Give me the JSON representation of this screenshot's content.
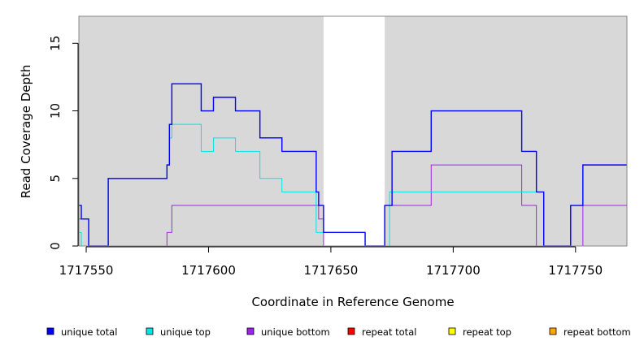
{
  "chart_data": {
    "type": "line",
    "step": true,
    "title": "",
    "xlabel": "Coordinate in Reference Genome",
    "ylabel": "Read Coverage Depth",
    "xlim": [
      1717547,
      1717771
    ],
    "ylim": [
      0,
      17
    ],
    "x_ticks": [
      1717550,
      1717600,
      1717650,
      1717700,
      1717750
    ],
    "x_tick_labels": [
      "1717550",
      "1717600",
      "1717650",
      "1717700",
      "1717750"
    ],
    "y_ticks": [
      0,
      5,
      10,
      15
    ],
    "y_tick_labels": [
      "0",
      "5",
      "10",
      "15"
    ],
    "background": {
      "shaded_color": "#d8d8d8",
      "shaded_ranges": [
        [
          1717547,
          1717647
        ],
        [
          1717672,
          1717771
        ]
      ]
    },
    "legend": {
      "placement": "bottom",
      "entries": [
        {
          "label": "unique total",
          "color": "#0000ff"
        },
        {
          "label": "unique top",
          "color": "#00e5e5"
        },
        {
          "label": "unique bottom",
          "color": "#a020f0"
        },
        {
          "label": "repeat total",
          "color": "#ff0000"
        },
        {
          "label": "repeat top",
          "color": "#ffff00"
        },
        {
          "label": "repeat bottom",
          "color": "#ffa500"
        }
      ]
    },
    "series": [
      {
        "name": "unique total",
        "color": "#0000ff",
        "points": [
          [
            1717547,
            3
          ],
          [
            1717548,
            2
          ],
          [
            1717551,
            0
          ],
          [
            1717559,
            5
          ],
          [
            1717583,
            6
          ],
          [
            1717584,
            9
          ],
          [
            1717585,
            12
          ],
          [
            1717597,
            10
          ],
          [
            1717602,
            11
          ],
          [
            1717611,
            10
          ],
          [
            1717621,
            8
          ],
          [
            1717630,
            7
          ],
          [
            1717644,
            4
          ],
          [
            1717645,
            3
          ],
          [
            1717647,
            1
          ],
          [
            1717664,
            0
          ],
          [
            1717672,
            3
          ],
          [
            1717675,
            7
          ],
          [
            1717691,
            10
          ],
          [
            1717728,
            7
          ],
          [
            1717734,
            4
          ],
          [
            1717737,
            0
          ],
          [
            1717748,
            3
          ],
          [
            1717753,
            6
          ],
          [
            1717771,
            6
          ]
        ]
      },
      {
        "name": "unique top",
        "color": "#00e5e5",
        "points": [
          [
            1717547,
            1
          ],
          [
            1717548,
            0
          ],
          [
            1717559,
            5
          ],
          [
            1717583,
            6
          ],
          [
            1717584,
            8
          ],
          [
            1717585,
            9
          ],
          [
            1717597,
            7
          ],
          [
            1717602,
            8
          ],
          [
            1717611,
            7
          ],
          [
            1717621,
            5
          ],
          [
            1717630,
            4
          ],
          [
            1717644,
            1
          ],
          [
            1717647,
            1
          ],
          [
            1717664,
            0
          ],
          [
            1717674,
            4
          ],
          [
            1717734,
            4
          ],
          [
            1717737,
            0
          ],
          [
            1717748,
            3
          ],
          [
            1717753,
            6
          ],
          [
            1717771,
            6
          ]
        ]
      },
      {
        "name": "unique bottom",
        "color": "#a020f0",
        "points": [
          [
            1717547,
            2
          ],
          [
            1717548,
            2
          ],
          [
            1717551,
            0
          ],
          [
            1717583,
            1
          ],
          [
            1717585,
            3
          ],
          [
            1717645,
            2
          ],
          [
            1717647,
            0
          ],
          [
            1717672,
            3
          ],
          [
            1717691,
            6
          ],
          [
            1717728,
            3
          ],
          [
            1717734,
            0
          ],
          [
            1717753,
            3
          ],
          [
            1717771,
            3
          ]
        ]
      },
      {
        "name": "repeat total",
        "color": "#ff0000",
        "points": [
          [
            1717547,
            0
          ],
          [
            1717771,
            0
          ]
        ]
      },
      {
        "name": "repeat top",
        "color": "#ffff00",
        "points": [
          [
            1717547,
            0
          ],
          [
            1717771,
            0
          ]
        ]
      },
      {
        "name": "repeat bottom",
        "color": "#ffa500",
        "points": [
          [
            1717547,
            0
          ],
          [
            1717771,
            0
          ]
        ]
      }
    ]
  }
}
